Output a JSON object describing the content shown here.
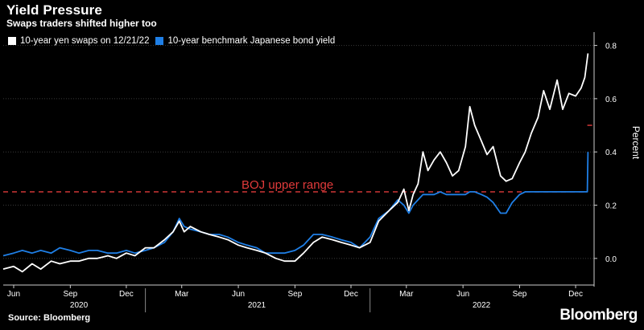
{
  "header": {
    "title": "Yield Pressure",
    "subtitle": "Swaps traders shifted higher too"
  },
  "legend": [
    {
      "label": "10-year yen swaps on 12/21/22",
      "color": "#ffffff"
    },
    {
      "label": "10-year benchmark Japanese bond yield",
      "color": "#1f7fe6"
    }
  ],
  "footer": {
    "source": "Source: Bloomberg",
    "brand": "Bloomberg"
  },
  "chart_data": {
    "type": "line",
    "ylabel": "Percent",
    "ylim": [
      -0.1,
      0.85
    ],
    "yticks": [
      0.0,
      0.2,
      0.4,
      0.6,
      0.8
    ],
    "ytick_labels": [
      "0.0",
      "0.2",
      "0.4",
      "0.6",
      "0.8"
    ],
    "xlim": [
      "2020-05-15",
      "2022-12-31"
    ],
    "month_ticks": [
      {
        "label": "Jun",
        "date": "2020-06-01"
      },
      {
        "label": "Sep",
        "date": "2020-09-01"
      },
      {
        "label": "Dec",
        "date": "2020-12-01"
      },
      {
        "label": "Mar",
        "date": "2021-03-01"
      },
      {
        "label": "Jun",
        "date": "2021-06-01"
      },
      {
        "label": "Sep",
        "date": "2021-09-01"
      },
      {
        "label": "Dec",
        "date": "2021-12-01"
      },
      {
        "label": "Mar",
        "date": "2022-03-01"
      },
      {
        "label": "Jun",
        "date": "2022-06-01"
      },
      {
        "label": "Sep",
        "date": "2022-09-01"
      },
      {
        "label": "Dec",
        "date": "2022-12-01"
      }
    ],
    "year_labels": [
      {
        "label": "2020",
        "date": "2020-09-15"
      },
      {
        "label": "2021",
        "date": "2021-07-01"
      },
      {
        "label": "2022",
        "date": "2022-07-01"
      }
    ],
    "year_dividers": [
      "2021-01-01",
      "2022-01-01"
    ],
    "reference_lines": [
      {
        "label": "BOJ upper range",
        "y": 0.25,
        "color": "#e03a3a",
        "from": "2020-05-15",
        "to": "2022-12-20"
      },
      {
        "label": "",
        "y": 0.5,
        "color": "#e03a3a",
        "from": "2022-12-20",
        "to": "2022-12-31"
      }
    ],
    "series": [
      {
        "name": "10-year yen swaps on 12/21/22",
        "color": "#ffffff",
        "points": [
          [
            "2020-05-15",
            -0.04
          ],
          [
            "2020-06-01",
            -0.03
          ],
          [
            "2020-06-15",
            -0.05
          ],
          [
            "2020-07-01",
            -0.02
          ],
          [
            "2020-07-15",
            -0.04
          ],
          [
            "2020-08-01",
            -0.01
          ],
          [
            "2020-08-15",
            -0.02
          ],
          [
            "2020-09-01",
            -0.01
          ],
          [
            "2020-09-15",
            -0.01
          ],
          [
            "2020-10-01",
            0.0
          ],
          [
            "2020-10-15",
            0.0
          ],
          [
            "2020-11-01",
            0.01
          ],
          [
            "2020-11-15",
            0.0
          ],
          [
            "2020-12-01",
            0.02
          ],
          [
            "2020-12-15",
            0.01
          ],
          [
            "2021-01-01",
            0.04
          ],
          [
            "2021-01-15",
            0.04
          ],
          [
            "2021-02-01",
            0.07
          ],
          [
            "2021-02-15",
            0.1
          ],
          [
            "2021-02-25",
            0.14
          ],
          [
            "2021-03-05",
            0.1
          ],
          [
            "2021-03-15",
            0.12
          ],
          [
            "2021-04-01",
            0.1
          ],
          [
            "2021-04-15",
            0.09
          ],
          [
            "2021-05-01",
            0.08
          ],
          [
            "2021-05-15",
            0.07
          ],
          [
            "2021-06-01",
            0.05
          ],
          [
            "2021-06-15",
            0.04
          ],
          [
            "2021-07-01",
            0.03
          ],
          [
            "2021-07-15",
            0.02
          ],
          [
            "2021-08-01",
            0.0
          ],
          [
            "2021-08-15",
            -0.01
          ],
          [
            "2021-09-01",
            -0.01
          ],
          [
            "2021-09-15",
            0.02
          ],
          [
            "2021-10-01",
            0.06
          ],
          [
            "2021-10-15",
            0.08
          ],
          [
            "2021-11-01",
            0.07
          ],
          [
            "2021-11-15",
            0.06
          ],
          [
            "2021-12-01",
            0.05
          ],
          [
            "2021-12-15",
            0.04
          ],
          [
            "2022-01-01",
            0.06
          ],
          [
            "2022-01-15",
            0.14
          ],
          [
            "2022-02-01",
            0.18
          ],
          [
            "2022-02-15",
            0.21
          ],
          [
            "2022-02-25",
            0.26
          ],
          [
            "2022-03-05",
            0.18
          ],
          [
            "2022-03-12",
            0.24
          ],
          [
            "2022-03-20",
            0.28
          ],
          [
            "2022-03-28",
            0.4
          ],
          [
            "2022-04-05",
            0.33
          ],
          [
            "2022-04-15",
            0.37
          ],
          [
            "2022-04-25",
            0.4
          ],
          [
            "2022-05-05",
            0.36
          ],
          [
            "2022-05-15",
            0.31
          ],
          [
            "2022-05-25",
            0.33
          ],
          [
            "2022-06-05",
            0.42
          ],
          [
            "2022-06-12",
            0.57
          ],
          [
            "2022-06-20",
            0.5
          ],
          [
            "2022-07-01",
            0.44
          ],
          [
            "2022-07-10",
            0.39
          ],
          [
            "2022-07-20",
            0.42
          ],
          [
            "2022-08-01",
            0.31
          ],
          [
            "2022-08-10",
            0.29
          ],
          [
            "2022-08-20",
            0.3
          ],
          [
            "2022-09-01",
            0.36
          ],
          [
            "2022-09-10",
            0.4
          ],
          [
            "2022-09-20",
            0.47
          ],
          [
            "2022-10-01",
            0.53
          ],
          [
            "2022-10-10",
            0.63
          ],
          [
            "2022-10-20",
            0.56
          ],
          [
            "2022-11-01",
            0.67
          ],
          [
            "2022-11-10",
            0.56
          ],
          [
            "2022-11-20",
            0.62
          ],
          [
            "2022-12-01",
            0.61
          ],
          [
            "2022-12-10",
            0.64
          ],
          [
            "2022-12-16",
            0.68
          ],
          [
            "2022-12-21",
            0.77
          ]
        ]
      },
      {
        "name": "10-year benchmark Japanese bond yield",
        "color": "#1f7fe6",
        "points": [
          [
            "2020-05-15",
            0.01
          ],
          [
            "2020-06-01",
            0.02
          ],
          [
            "2020-06-15",
            0.03
          ],
          [
            "2020-07-01",
            0.02
          ],
          [
            "2020-07-15",
            0.03
          ],
          [
            "2020-08-01",
            0.02
          ],
          [
            "2020-08-15",
            0.04
          ],
          [
            "2020-09-01",
            0.03
          ],
          [
            "2020-09-15",
            0.02
          ],
          [
            "2020-10-01",
            0.03
          ],
          [
            "2020-10-15",
            0.03
          ],
          [
            "2020-11-01",
            0.02
          ],
          [
            "2020-11-15",
            0.02
          ],
          [
            "2020-12-01",
            0.03
          ],
          [
            "2020-12-15",
            0.02
          ],
          [
            "2021-01-01",
            0.03
          ],
          [
            "2021-01-15",
            0.04
          ],
          [
            "2021-02-01",
            0.06
          ],
          [
            "2021-02-15",
            0.1
          ],
          [
            "2021-02-25",
            0.15
          ],
          [
            "2021-03-05",
            0.12
          ],
          [
            "2021-03-15",
            0.11
          ],
          [
            "2021-04-01",
            0.1
          ],
          [
            "2021-04-15",
            0.09
          ],
          [
            "2021-05-01",
            0.09
          ],
          [
            "2021-05-15",
            0.08
          ],
          [
            "2021-06-01",
            0.06
          ],
          [
            "2021-06-15",
            0.05
          ],
          [
            "2021-07-01",
            0.04
          ],
          [
            "2021-07-15",
            0.02
          ],
          [
            "2021-08-01",
            0.02
          ],
          [
            "2021-08-15",
            0.02
          ],
          [
            "2021-09-01",
            0.03
          ],
          [
            "2021-09-15",
            0.05
          ],
          [
            "2021-10-01",
            0.09
          ],
          [
            "2021-10-15",
            0.09
          ],
          [
            "2021-11-01",
            0.08
          ],
          [
            "2021-11-15",
            0.07
          ],
          [
            "2021-12-01",
            0.06
          ],
          [
            "2021-12-15",
            0.04
          ],
          [
            "2022-01-01",
            0.08
          ],
          [
            "2022-01-15",
            0.15
          ],
          [
            "2022-02-01",
            0.18
          ],
          [
            "2022-02-15",
            0.22
          ],
          [
            "2022-02-25",
            0.2
          ],
          [
            "2022-03-05",
            0.17
          ],
          [
            "2022-03-12",
            0.2
          ],
          [
            "2022-03-20",
            0.22
          ],
          [
            "2022-03-28",
            0.24
          ],
          [
            "2022-04-05",
            0.24
          ],
          [
            "2022-04-15",
            0.24
          ],
          [
            "2022-04-25",
            0.25
          ],
          [
            "2022-05-05",
            0.24
          ],
          [
            "2022-05-15",
            0.24
          ],
          [
            "2022-05-25",
            0.24
          ],
          [
            "2022-06-05",
            0.24
          ],
          [
            "2022-06-12",
            0.25
          ],
          [
            "2022-06-20",
            0.25
          ],
          [
            "2022-07-01",
            0.24
          ],
          [
            "2022-07-10",
            0.23
          ],
          [
            "2022-07-20",
            0.21
          ],
          [
            "2022-08-01",
            0.17
          ],
          [
            "2022-08-10",
            0.17
          ],
          [
            "2022-08-20",
            0.21
          ],
          [
            "2022-09-01",
            0.24
          ],
          [
            "2022-09-10",
            0.25
          ],
          [
            "2022-09-20",
            0.25
          ],
          [
            "2022-10-01",
            0.25
          ],
          [
            "2022-10-10",
            0.25
          ],
          [
            "2022-10-20",
            0.25
          ],
          [
            "2022-11-01",
            0.25
          ],
          [
            "2022-11-10",
            0.25
          ],
          [
            "2022-11-20",
            0.25
          ],
          [
            "2022-12-01",
            0.25
          ],
          [
            "2022-12-10",
            0.25
          ],
          [
            "2022-12-16",
            0.25
          ],
          [
            "2022-12-20",
            0.25
          ],
          [
            "2022-12-21",
            0.4
          ]
        ]
      }
    ]
  }
}
